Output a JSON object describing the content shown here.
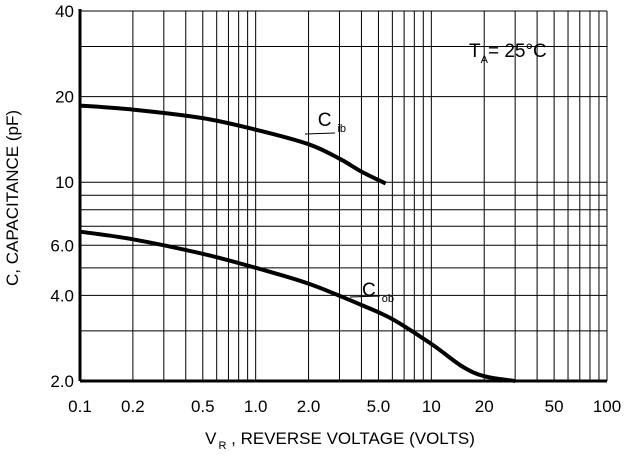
{
  "chart_data": {
    "type": "line",
    "x_scale": "log",
    "y_scale": "log",
    "xlim": [
      0.1,
      100
    ],
    "ylim": [
      2.0,
      40
    ],
    "grid": true,
    "xlabel": {
      "main": "V",
      "sub": "R",
      "rest": " , REVERSE VOLTAGE (VOLTS)"
    },
    "ylabel": "C, CAPACITANCE (pF)",
    "x_ticks": [
      {
        "value": 0.1,
        "label": "0.1"
      },
      {
        "value": 0.2,
        "label": "0.2"
      },
      {
        "value": 0.5,
        "label": "0.5"
      },
      {
        "value": 1.0,
        "label": "1.0"
      },
      {
        "value": 2.0,
        "label": "2.0"
      },
      {
        "value": 5.0,
        "label": "5.0"
      },
      {
        "value": 10,
        "label": "10"
      },
      {
        "value": 20,
        "label": "20"
      },
      {
        "value": 50,
        "label": "50"
      },
      {
        "value": 100,
        "label": "100"
      }
    ],
    "y_ticks": [
      {
        "value": 2.0,
        "label": "2.0"
      },
      {
        "value": 4.0,
        "label": "4.0"
      },
      {
        "value": 6.0,
        "label": "6.0"
      },
      {
        "value": 10,
        "label": "10"
      },
      {
        "value": 20,
        "label": "20"
      },
      {
        "value": 40,
        "label": "40"
      }
    ],
    "annotation": {
      "main": "T",
      "sub": "A",
      "rest": "= 25°C"
    },
    "series": [
      {
        "name": "C ib",
        "label_main": "C",
        "label_sub": "ib",
        "points": [
          [
            0.1,
            18.6
          ],
          [
            0.2,
            18.0
          ],
          [
            0.5,
            16.8
          ],
          [
            1.0,
            15.3
          ],
          [
            2.0,
            13.6
          ],
          [
            3.0,
            12.1
          ],
          [
            4.0,
            10.9
          ],
          [
            5.5,
            9.9
          ]
        ]
      },
      {
        "name": "C ob",
        "label_main": "C",
        "label_sub": "ob",
        "points": [
          [
            0.1,
            6.7
          ],
          [
            0.2,
            6.3
          ],
          [
            0.5,
            5.6
          ],
          [
            1.0,
            5.0
          ],
          [
            2.0,
            4.4
          ],
          [
            4.0,
            3.7
          ],
          [
            6.0,
            3.3
          ],
          [
            10,
            2.7
          ],
          [
            15,
            2.25
          ],
          [
            20,
            2.08
          ],
          [
            30,
            2.0
          ]
        ]
      }
    ]
  }
}
